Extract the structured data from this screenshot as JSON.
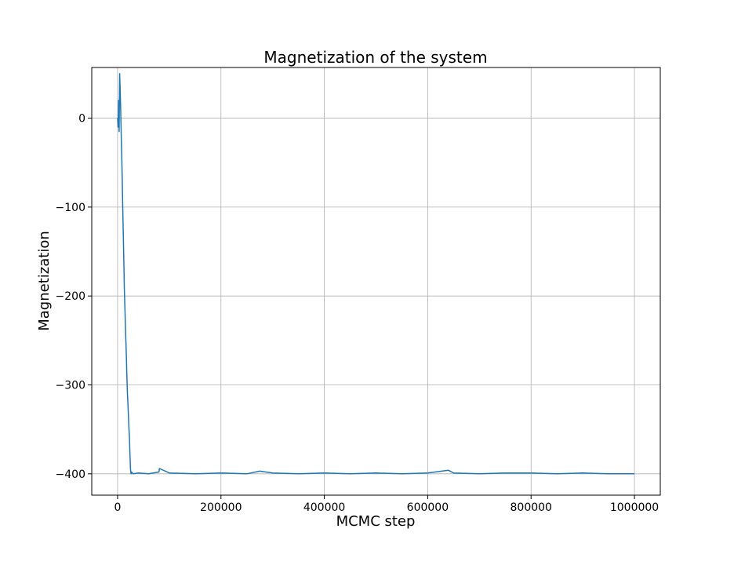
{
  "chart_data": {
    "type": "line",
    "title": "Magnetization of the system",
    "xlabel": "MCMC step",
    "ylabel": "Magnetization",
    "xlim": [
      -50000,
      1050000
    ],
    "ylim": [
      -424,
      57
    ],
    "grid": true,
    "x_ticks": [
      {
        "value": 0,
        "label": "0"
      },
      {
        "value": 200000,
        "label": "200000"
      },
      {
        "value": 400000,
        "label": "400000"
      },
      {
        "value": 600000,
        "label": "600000"
      },
      {
        "value": 800000,
        "label": "800000"
      },
      {
        "value": 1000000,
        "label": "1000000"
      }
    ],
    "y_ticks": [
      {
        "value": 0,
        "label": "0"
      },
      {
        "value": -100,
        "label": "−100"
      },
      {
        "value": -200,
        "label": "−200"
      },
      {
        "value": -300,
        "label": "−300"
      },
      {
        "value": -400,
        "label": "−400"
      }
    ],
    "series": [
      {
        "color": "#1f77b4",
        "x": [
          0,
          1000,
          2000,
          3000,
          4000,
          5000,
          6000,
          7000,
          8000,
          9000,
          10000,
          11000,
          12000,
          13000,
          14000,
          15000,
          16000,
          17000,
          18000,
          19000,
          20000,
          21000,
          22000,
          23000,
          24000,
          25000,
          26000,
          27000,
          30000,
          40000,
          60000,
          80000,
          81000,
          100000,
          150000,
          200000,
          250000,
          275000,
          300000,
          350000,
          400000,
          450000,
          500000,
          550000,
          600000,
          640000,
          650000,
          700000,
          750000,
          800000,
          850000,
          900000,
          950000,
          1000000
        ],
        "y": [
          0,
          -10,
          20,
          -15,
          50,
          30,
          10,
          -20,
          -40,
          -70,
          -100,
          -130,
          -160,
          -190,
          -210,
          -230,
          -250,
          -270,
          -290,
          -310,
          -320,
          -335,
          -350,
          -360,
          -380,
          -395,
          -400,
          -398,
          -400,
          -399,
          -400,
          -398,
          -394,
          -399,
          -400,
          -399,
          -400,
          -397,
          -399,
          -400,
          -399,
          -400,
          -399,
          -400,
          -399,
          -396,
          -399,
          -400,
          -399,
          -399,
          -400,
          -399,
          -400,
          -400
        ]
      }
    ]
  }
}
